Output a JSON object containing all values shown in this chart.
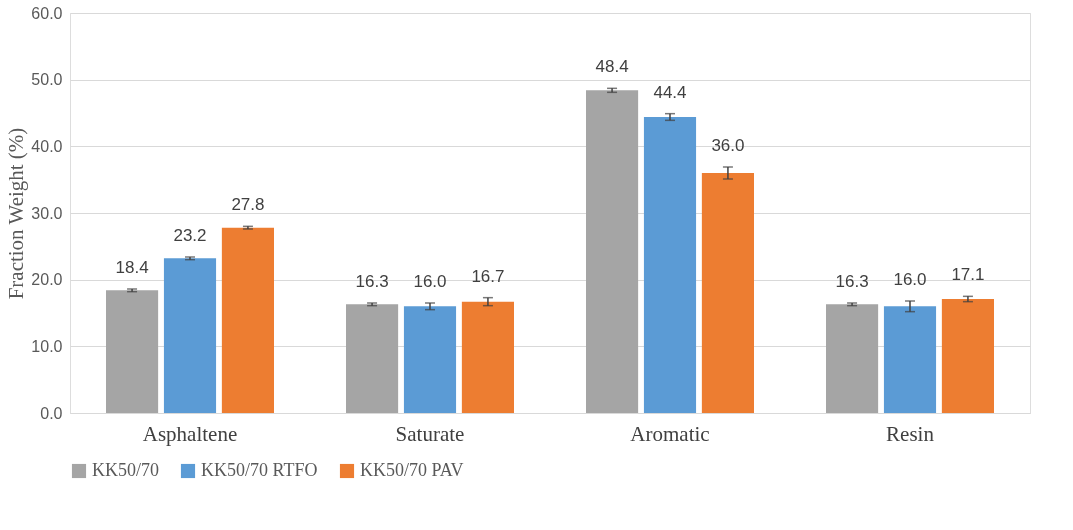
{
  "chart_data": {
    "type": "bar",
    "ylabel": "Fraction Weight (%)",
    "categories": [
      "Asphaltene",
      "Saturate",
      "Aromatic",
      "Resin"
    ],
    "series": [
      {
        "name": "KK50/70",
        "color": "#a5a5a5",
        "values": [
          18.4,
          16.3,
          48.4,
          16.3
        ],
        "errors": [
          0.2,
          0.2,
          0.3,
          0.2
        ],
        "value_labels": [
          "18.4",
          "16.3",
          "48.4",
          "16.3"
        ]
      },
      {
        "name": "KK50/70 RTFO",
        "color": "#5b9bd5",
        "values": [
          23.2,
          16.0,
          44.4,
          16.0
        ],
        "errors": [
          0.2,
          0.5,
          0.5,
          0.8
        ],
        "value_labels": [
          "23.2",
          "16.0",
          "44.4",
          "16.0"
        ]
      },
      {
        "name": "KK50/70 PAV",
        "color": "#ed7d31",
        "values": [
          27.8,
          16.7,
          36.0,
          17.1
        ],
        "errors": [
          0.2,
          0.6,
          0.9,
          0.4
        ],
        "value_labels": [
          "27.8",
          "16.7",
          "36.0",
          "17.1"
        ]
      }
    ],
    "ylim": [
      0,
      60
    ],
    "yticks": [
      {
        "value": 0,
        "label": "0.0"
      },
      {
        "value": 10,
        "label": "10.0"
      },
      {
        "value": 20,
        "label": "20.0"
      },
      {
        "value": 30,
        "label": "30.0"
      },
      {
        "value": 40,
        "label": "40.0"
      },
      {
        "value": 50,
        "label": "50.0"
      },
      {
        "value": 60,
        "label": "60.0"
      }
    ],
    "grid": "y",
    "legend": "bottom"
  }
}
